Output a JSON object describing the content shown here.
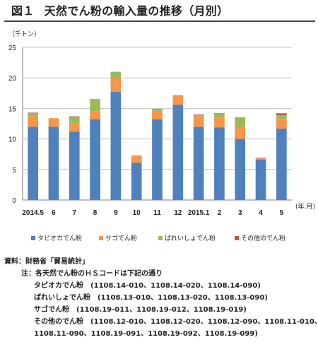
{
  "title": {
    "prefix": "図１",
    "text": "天然でん粉の輸入量の推移（月別）"
  },
  "unit_label": "（千トン）",
  "x_unit_label": "(年.月)",
  "colors": {
    "tapioca": "#4f81bd",
    "sago": "#f79646",
    "potato": "#9bbb59",
    "other": "#c0504d",
    "grid": "#c0c0c0",
    "axis": "#7f7f7f"
  },
  "chart_data": {
    "type": "bar",
    "stacked": true,
    "categories": [
      "2014.5",
      "6",
      "7",
      "8",
      "9",
      "10",
      "11",
      "12",
      "2015.1",
      "2",
      "3",
      "4",
      "5"
    ],
    "series": [
      {
        "name": "タピオカでん粉",
        "values": [
          12.0,
          12.0,
          11.2,
          13.2,
          17.7,
          6.1,
          13.2,
          15.6,
          12.0,
          11.9,
          10.0,
          6.6,
          11.7
        ]
      },
      {
        "name": "サゴでん粉",
        "values": [
          1.7,
          1.4,
          1.4,
          1.3,
          2.3,
          1.2,
          1.4,
          1.4,
          1.7,
          1.6,
          2.0,
          0.2,
          1.6
        ]
      },
      {
        "name": "ばれいしょでん粉",
        "values": [
          0.5,
          0.0,
          1.0,
          1.9,
          1.0,
          0.0,
          0.2,
          0.0,
          0.2,
          0.6,
          1.4,
          0.0,
          0.6
        ]
      },
      {
        "name": "その他のでん粉",
        "values": [
          0.1,
          0.0,
          0.1,
          0.1,
          0.0,
          0.0,
          0.1,
          0.1,
          0.1,
          0.1,
          0.1,
          0.1,
          0.3
        ]
      }
    ],
    "y_ticks": [
      "0",
      "5",
      "10",
      "15",
      "20",
      "25"
    ],
    "ylim": [
      0,
      25
    ],
    "grid": true,
    "legend_position": "bottom"
  },
  "notes": {
    "source": "資料：財務省「貿易統計」",
    "note_head": "注：各天然でん粉のＨＳコードは下記の通り",
    "tapioca": "タピオカでん粉　(1108.14-010、1108.14-020、1108.14-090)",
    "potato": "ばれいしょでん粉　(1108.13-010、1108.13-020、1108.13-090)",
    "sago": "サゴでん粉　(1108.19-011、1108.19-012、1108.19-019)",
    "other1": "その他のでん粉　(1108.12-010、1108.12-020、1108.12-090、1108.11-010、",
    "other2": "1108.11-090、1108.19-091、1108.19-092、1108.19-099)"
  }
}
